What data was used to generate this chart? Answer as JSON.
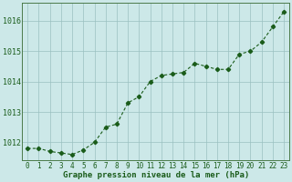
{
  "x": [
    0,
    1,
    2,
    3,
    4,
    5,
    6,
    7,
    8,
    9,
    10,
    11,
    12,
    13,
    14,
    15,
    16,
    17,
    18,
    19,
    20,
    21,
    22,
    23
  ],
  "y": [
    1011.8,
    1011.8,
    1011.7,
    1011.65,
    1011.6,
    1011.75,
    1012.0,
    1012.5,
    1012.6,
    1013.3,
    1013.5,
    1014.0,
    1014.2,
    1014.25,
    1014.3,
    1014.6,
    1014.5,
    1014.4,
    1014.4,
    1014.9,
    1015.0,
    1015.3,
    1015.8,
    1016.3
  ],
  "line_color": "#1a5c1a",
  "marker": "D",
  "marker_size": 2.2,
  "line_width": 0.8,
  "bg_color": "#cce8e8",
  "grid_color": "#9ac0c0",
  "xlabel": "Graphe pression niveau de la mer (hPa)",
  "xlabel_color": "#1a5c1a",
  "xlabel_fontsize": 6.5,
  "tick_color": "#1a5c1a",
  "tick_fontsize": 5.5,
  "ytick_fontsize": 6.0,
  "ylim": [
    1011.4,
    1016.6
  ],
  "yticks": [
    1012,
    1013,
    1014,
    1015,
    1016
  ],
  "xlim": [
    -0.5,
    23.5
  ]
}
